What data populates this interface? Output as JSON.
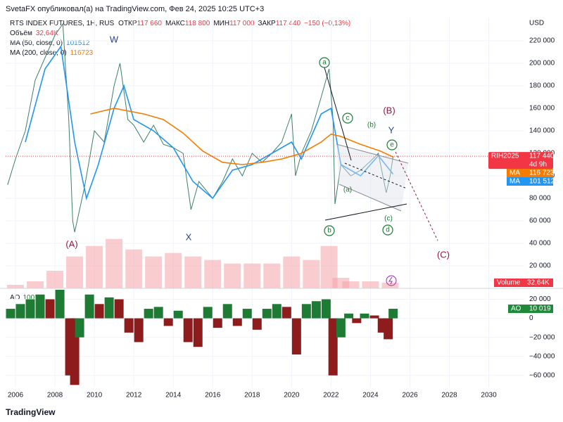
{
  "header": "SvetaFX опубликовал(а) на TradingView.com, Фев 24, 2025 10:25 UTC+3",
  "brand": "TradingView",
  "chart_data": [
    {
      "type": "line",
      "title": "RTS INDEX FUTURES, 1H, RUS",
      "ohlc": [
        {
          "label": "ОТКР",
          "value": "117 660"
        },
        {
          "label": "МАКС",
          "value": "118 800"
        },
        {
          "label": "МИН",
          "value": "117 000"
        },
        {
          "label": "ЗАКР",
          "value": "117 440"
        }
      ],
      "change": "−150 (−0,13%)",
      "currency": "USD",
      "xlim": [
        2005.5,
        2031.8
      ],
      "xticks": [
        2006,
        2008,
        2010,
        2012,
        2014,
        2016,
        2018,
        2020,
        2022,
        2024,
        2026,
        2028,
        2030
      ],
      "ylim": [
        0,
        240000
      ],
      "yticks": [
        {
          "value": 20000,
          "label": "20 000"
        },
        {
          "value": 40000,
          "label": "40 000"
        },
        {
          "value": 60000,
          "label": "60 000"
        },
        {
          "value": 80000,
          "label": "80 000"
        },
        {
          "value": 100000,
          "label": "100 000"
        },
        {
          "value": 120000,
          "label": "120 000"
        },
        {
          "value": 140000,
          "label": "140 000"
        },
        {
          "value": 160000,
          "label": "160 000"
        },
        {
          "value": 180000,
          "label": "180 000"
        },
        {
          "value": 200000,
          "label": "200 000"
        },
        {
          "value": 220000,
          "label": "220 000"
        }
      ],
      "series": [
        {
          "name": "RIH2025",
          "color": "#3f7f6a",
          "last_label": "117 440",
          "countdown": "4d 9h",
          "tag_color": "#f23645",
          "x": [
            2005.6,
            2006.0,
            2006.5,
            2007.0,
            2007.5,
            2008.0,
            2008.4,
            2008.7,
            2008.9,
            2009.0,
            2009.5,
            2010.0,
            2010.5,
            2011.0,
            2011.3,
            2011.7,
            2012.0,
            2012.5,
            2013.0,
            2013.5,
            2014.0,
            2014.5,
            2014.9,
            2015.3,
            2016.0,
            2016.5,
            2017.0,
            2017.5,
            2018.0,
            2018.5,
            2019.0,
            2019.5,
            2020.0,
            2020.2,
            2020.5,
            2021.0,
            2021.5,
            2021.9,
            2022.1,
            2022.2,
            2022.5,
            2023.0,
            2023.5,
            2024.0,
            2024.4,
            2024.8,
            2025.0,
            2025.15
          ],
          "values": [
            92000,
            115000,
            140000,
            185000,
            205000,
            225000,
            235000,
            150000,
            60000,
            50000,
            90000,
            140000,
            130000,
            180000,
            200000,
            150000,
            145000,
            130000,
            145000,
            128000,
            125000,
            120000,
            70000,
            95000,
            80000,
            95000,
            115000,
            100000,
            120000,
            112000,
            120000,
            130000,
            155000,
            100000,
            120000,
            140000,
            170000,
            195000,
            150000,
            75000,
            110000,
            100000,
            105000,
            113000,
            120000,
            85000,
            100000,
            117440
          ]
        },
        {
          "name": "MA (50, close, 0)",
          "label": "MA",
          "color": "#2196f3",
          "last_label": "101 512",
          "x": [
            2006.5,
            2007.5,
            2008.3,
            2009.0,
            2009.6,
            2010.2,
            2011.0,
            2011.5,
            2012.0,
            2013.0,
            2014.0,
            2015.0,
            2016.0,
            2017.0,
            2018.0,
            2019.0,
            2020.0,
            2020.5,
            2021.5,
            2022.0,
            2022.5,
            2023.5,
            2024.4,
            2025.15
          ],
          "values": [
            130000,
            195000,
            215000,
            130000,
            80000,
            110000,
            160000,
            180000,
            150000,
            140000,
            125000,
            95000,
            80000,
            105000,
            110000,
            120000,
            130000,
            115000,
            155000,
            160000,
            110000,
            100000,
            118000,
            101512
          ]
        },
        {
          "name": "MA (200, close, 0)",
          "label": "MA",
          "color": "#f57c00",
          "last_label": "116 723",
          "x": [
            2009.8,
            2011.0,
            2012.5,
            2013.5,
            2014.5,
            2015.5,
            2016.5,
            2017.5,
            2018.5,
            2019.5,
            2020.5,
            2021.5,
            2022.0,
            2022.5,
            2023.5,
            2024.5,
            2025.15
          ],
          "values": [
            155000,
            160000,
            155000,
            150000,
            138000,
            122000,
            112000,
            110000,
            112000,
            115000,
            120000,
            130000,
            137000,
            135000,
            128000,
            122000,
            116723
          ]
        }
      ],
      "volume": {
        "name": "Объём",
        "legend_value": "32,64K",
        "tag": "Volume",
        "color": "#f4a3aa",
        "ylim": [
          0,
          1000000
        ],
        "x": [
          2006,
          2007,
          2008,
          2009,
          2010,
          2011,
          2012,
          2013,
          2014,
          2015,
          2016,
          2017,
          2018,
          2019,
          2020,
          2021,
          2021.9,
          2022.5,
          2023,
          2024,
          2025
        ],
        "values": [
          13000,
          26000,
          65000,
          118000,
          157000,
          183000,
          144000,
          118000,
          131000,
          118000,
          105000,
          92000,
          92000,
          92000,
          118000,
          105000,
          157000,
          39000,
          26000,
          26000,
          21000
        ]
      },
      "annotations": [
        "W",
        "X",
        "(A)",
        "(B)",
        "(C)",
        "Y",
        "a",
        "c",
        "e",
        "b",
        "d",
        "(b)",
        "(a)",
        "(c)"
      ]
    },
    {
      "type": "bar",
      "title": "AO",
      "last_label": "10 019",
      "tag_color": "#1e8a3a",
      "colors": {
        "up": "#1e7b34",
        "down": "#8e1c1c"
      },
      "ylim": [
        -72000,
        30000
      ],
      "yticks": [
        {
          "value": -60000,
          "label": "−60 000"
        },
        {
          "value": -40000,
          "label": "−40 000"
        },
        {
          "value": -20000,
          "label": "−20 000"
        },
        0,
        {
          "value": 20000,
          "label": "20 000"
        }
      ],
      "x": [
        2005.75,
        2006.25,
        2006.75,
        2007.25,
        2007.75,
        2008.25,
        2008.75,
        2009.0,
        2009.25,
        2009.75,
        2010.25,
        2010.75,
        2011.25,
        2011.75,
        2012.25,
        2012.75,
        2013.25,
        2013.75,
        2014.25,
        2014.75,
        2015.25,
        2015.75,
        2016.25,
        2016.75,
        2017.25,
        2017.75,
        2018.25,
        2018.75,
        2019.25,
        2019.75,
        2020.25,
        2020.75,
        2021.25,
        2021.75,
        2022.1,
        2022.5,
        2022.9,
        2023.3,
        2023.7,
        2024.2,
        2024.6,
        2024.9,
        2025.15
      ],
      "values": [
        10000,
        15000,
        20000,
        25000,
        20000,
        30000,
        -60000,
        -70000,
        -20000,
        25000,
        15000,
        22000,
        20000,
        -15000,
        -25000,
        10000,
        12000,
        -8000,
        8000,
        -25000,
        -30000,
        12000,
        -10000,
        15000,
        -8000,
        10000,
        -12000,
        10000,
        15000,
        12000,
        -38000,
        15000,
        18000,
        20000,
        -60000,
        -20000,
        5000,
        -5000,
        5000,
        3000,
        -15000,
        -22000,
        10019
      ]
    }
  ]
}
